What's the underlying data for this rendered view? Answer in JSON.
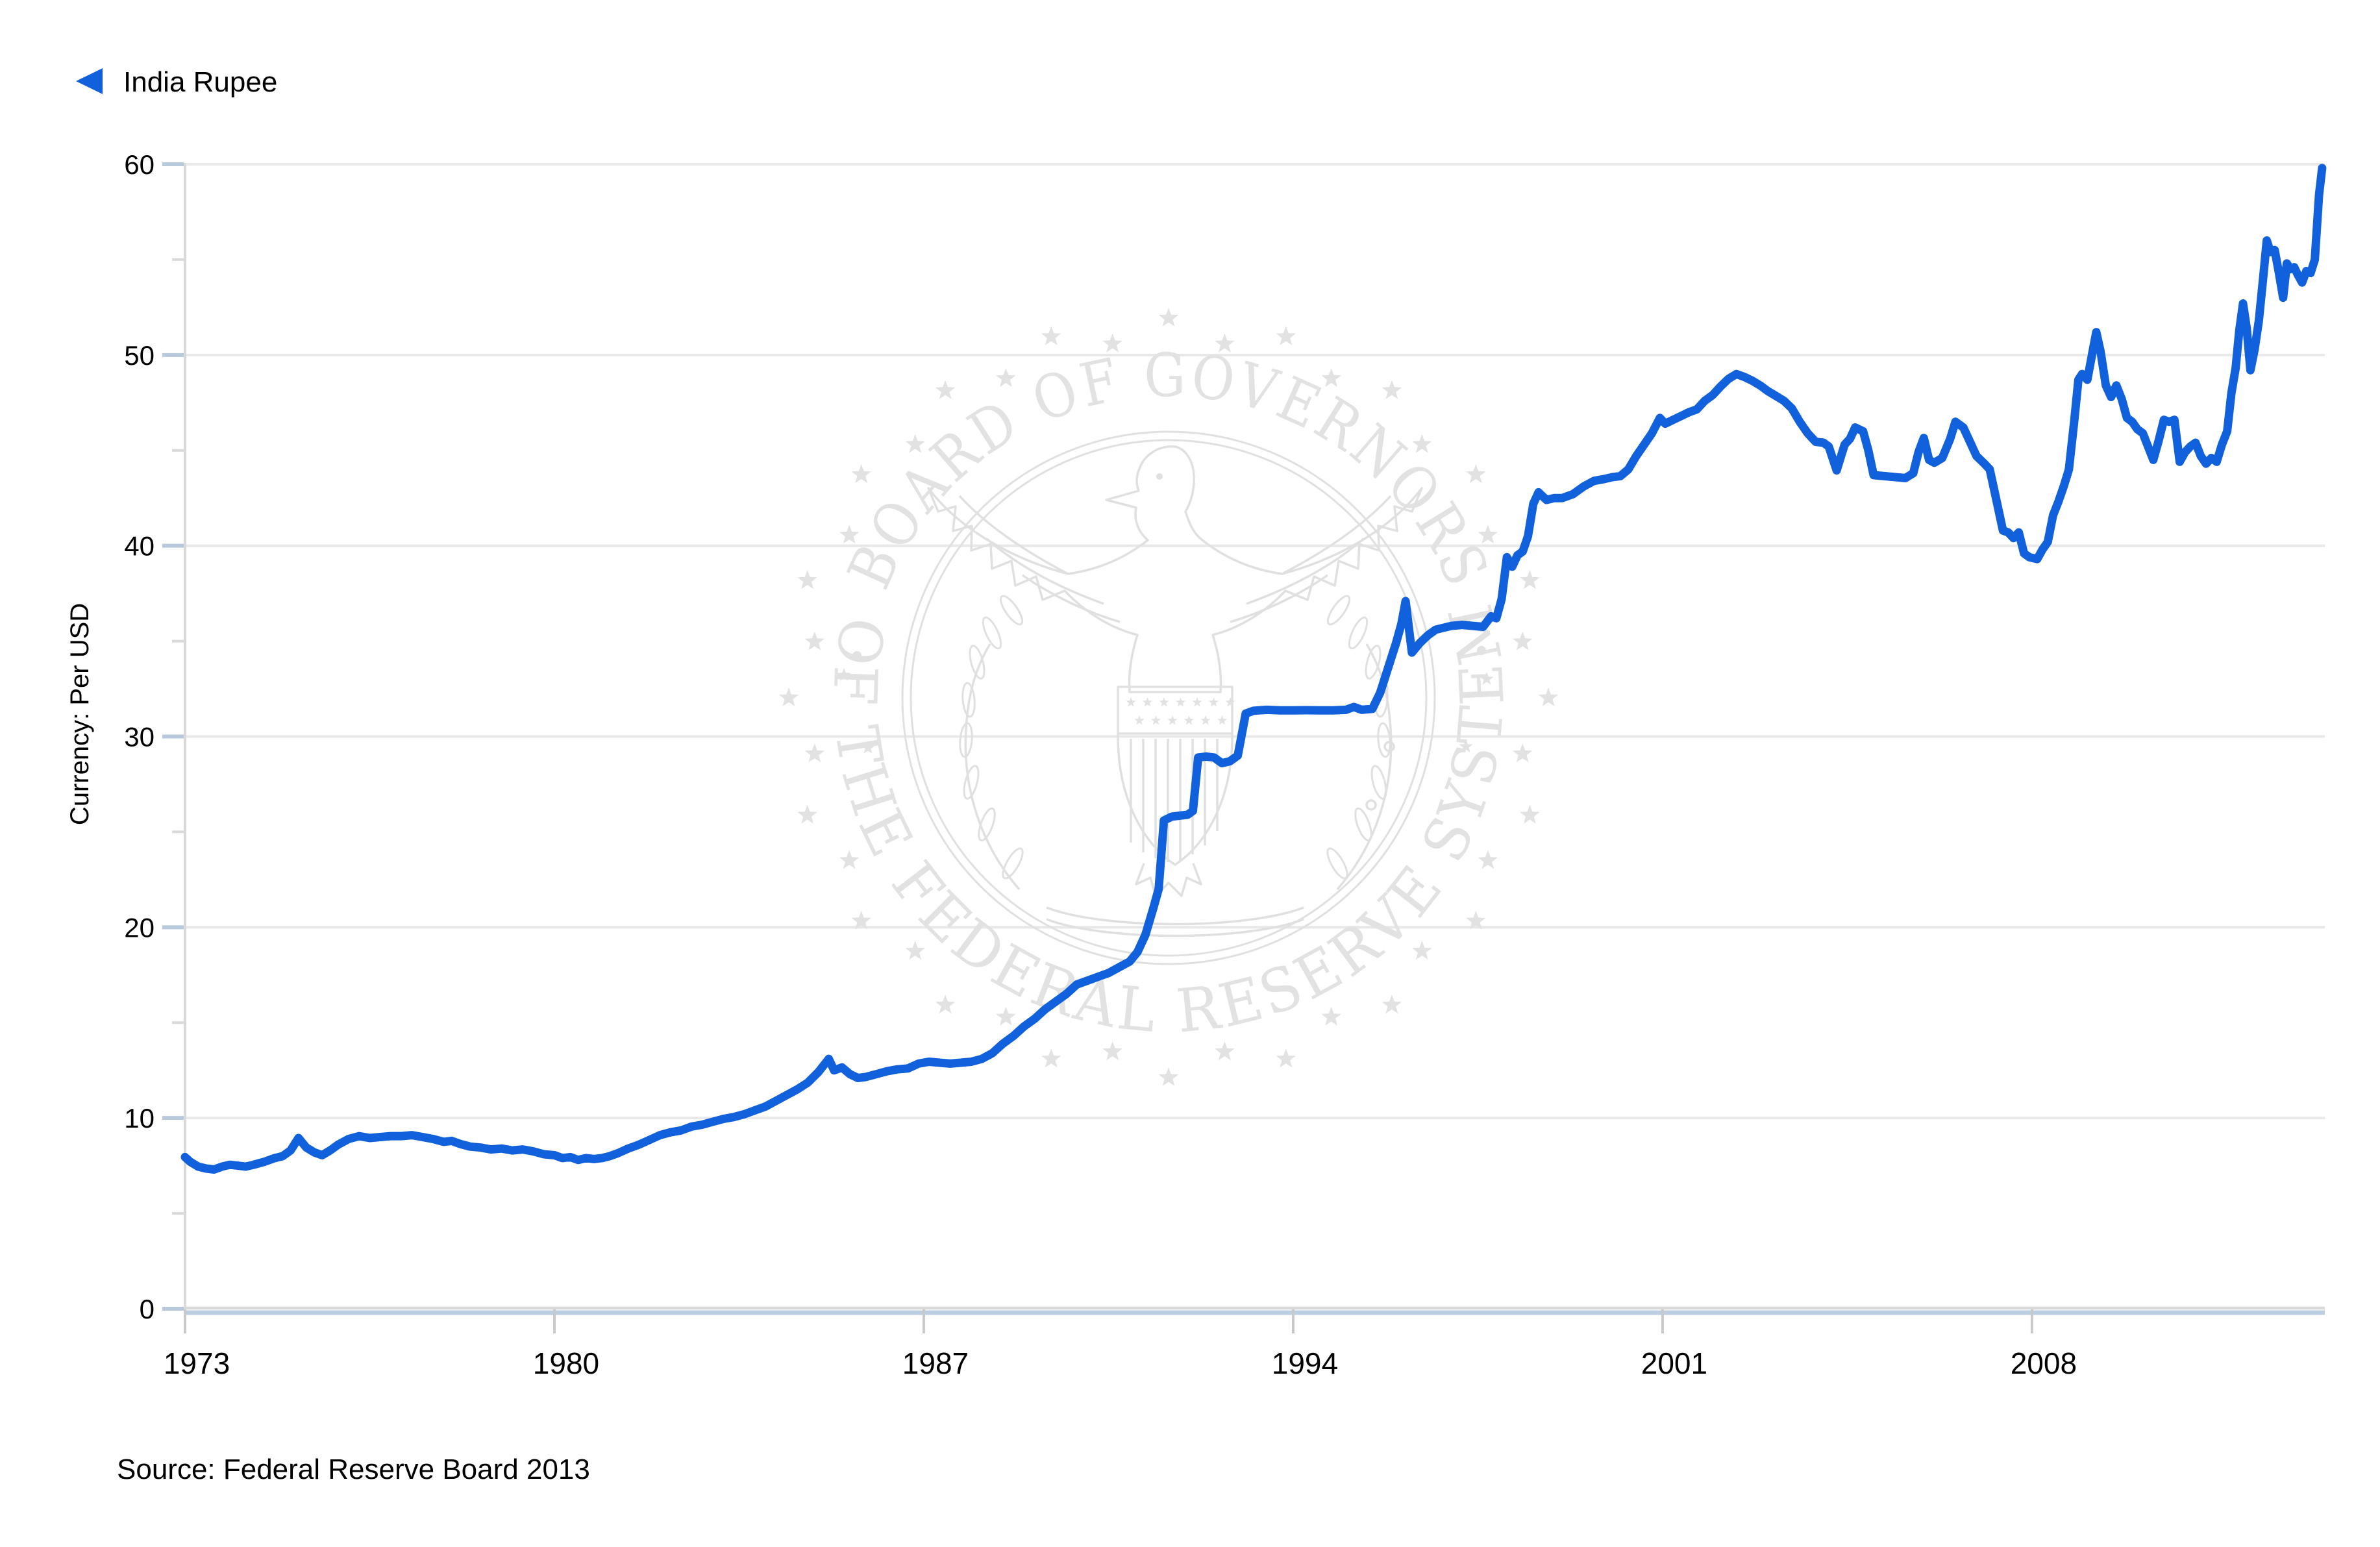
{
  "legend": {
    "label": "India Rupee"
  },
  "source": {
    "text": "Source: Federal Reserve Board 2013"
  },
  "watermark": {
    "top_text": "BOARD OF GOVERNORS",
    "bottom_text": "OF THE FEDERAL RESERVE SYSTEM"
  },
  "colors": {
    "line_blue": "#1161dc",
    "legend_triangle_blue": "#1161dc",
    "major_tick_blue": "#b7c9db",
    "baseline_blue": "#bccfe2",
    "gridline_gray": "#e8e8e8",
    "axis_gray": "#d9d9d9",
    "x_tick_gray": "#c9c9c9",
    "text_black": "#000000",
    "watermark_gray": "#e2e2e2",
    "watermark_stroke": "#e0e0e0"
  },
  "chart_data": {
    "type": "line",
    "title": "",
    "xlabel": "",
    "ylabel": "Currency: Per USD",
    "xlim": [
      1973,
      2013.55
    ],
    "ylim": [
      0,
      60
    ],
    "xticks": [
      1973,
      1980,
      1987,
      1994,
      2001,
      2008
    ],
    "yticks": [
      0,
      10,
      20,
      30,
      40,
      50,
      60
    ],
    "y_minor_ticks": [
      5,
      15,
      25,
      35,
      45,
      55
    ],
    "grid": "horizontal",
    "legend_position": "top-left",
    "series": [
      {
        "name": "India Rupee",
        "points": [
          [
            1973.0,
            7.95
          ],
          [
            1973.1,
            7.7
          ],
          [
            1973.25,
            7.45
          ],
          [
            1973.4,
            7.35
          ],
          [
            1973.55,
            7.3
          ],
          [
            1973.7,
            7.45
          ],
          [
            1973.85,
            7.55
          ],
          [
            1974.0,
            7.5
          ],
          [
            1974.15,
            7.45
          ],
          [
            1974.3,
            7.55
          ],
          [
            1974.5,
            7.7
          ],
          [
            1974.7,
            7.9
          ],
          [
            1974.85,
            8.0
          ],
          [
            1975.0,
            8.3
          ],
          [
            1975.15,
            8.95
          ],
          [
            1975.3,
            8.45
          ],
          [
            1975.45,
            8.2
          ],
          [
            1975.6,
            8.05
          ],
          [
            1975.75,
            8.3
          ],
          [
            1975.9,
            8.6
          ],
          [
            1976.1,
            8.9
          ],
          [
            1976.3,
            9.05
          ],
          [
            1976.5,
            8.95
          ],
          [
            1976.7,
            9.0
          ],
          [
            1976.9,
            9.05
          ],
          [
            1977.1,
            9.05
          ],
          [
            1977.3,
            9.1
          ],
          [
            1977.5,
            9.0
          ],
          [
            1977.7,
            8.9
          ],
          [
            1977.9,
            8.75
          ],
          [
            1978.05,
            8.8
          ],
          [
            1978.2,
            8.65
          ],
          [
            1978.4,
            8.5
          ],
          [
            1978.6,
            8.45
          ],
          [
            1978.8,
            8.35
          ],
          [
            1979.0,
            8.4
          ],
          [
            1979.2,
            8.3
          ],
          [
            1979.4,
            8.35
          ],
          [
            1979.6,
            8.25
          ],
          [
            1979.8,
            8.1
          ],
          [
            1980.0,
            8.05
          ],
          [
            1980.15,
            7.9
          ],
          [
            1980.3,
            7.95
          ],
          [
            1980.45,
            7.8
          ],
          [
            1980.6,
            7.9
          ],
          [
            1980.75,
            7.85
          ],
          [
            1980.9,
            7.9
          ],
          [
            1981.05,
            8.0
          ],
          [
            1981.2,
            8.15
          ],
          [
            1981.4,
            8.4
          ],
          [
            1981.6,
            8.6
          ],
          [
            1981.8,
            8.85
          ],
          [
            1982.0,
            9.1
          ],
          [
            1982.2,
            9.25
          ],
          [
            1982.4,
            9.35
          ],
          [
            1982.6,
            9.55
          ],
          [
            1982.8,
            9.65
          ],
          [
            1983.0,
            9.8
          ],
          [
            1983.2,
            9.95
          ],
          [
            1983.4,
            10.05
          ],
          [
            1983.6,
            10.2
          ],
          [
            1983.8,
            10.4
          ],
          [
            1984.0,
            10.6
          ],
          [
            1984.2,
            10.9
          ],
          [
            1984.4,
            11.2
          ],
          [
            1984.6,
            11.5
          ],
          [
            1984.8,
            11.85
          ],
          [
            1985.0,
            12.4
          ],
          [
            1985.2,
            13.1
          ],
          [
            1985.3,
            12.5
          ],
          [
            1985.45,
            12.65
          ],
          [
            1985.6,
            12.3
          ],
          [
            1985.75,
            12.1
          ],
          [
            1985.9,
            12.15
          ],
          [
            1986.1,
            12.3
          ],
          [
            1986.3,
            12.45
          ],
          [
            1986.5,
            12.55
          ],
          [
            1986.7,
            12.6
          ],
          [
            1986.9,
            12.85
          ],
          [
            1987.1,
            12.95
          ],
          [
            1987.3,
            12.9
          ],
          [
            1987.5,
            12.85
          ],
          [
            1987.7,
            12.9
          ],
          [
            1987.9,
            12.95
          ],
          [
            1988.1,
            13.1
          ],
          [
            1988.3,
            13.4
          ],
          [
            1988.5,
            13.9
          ],
          [
            1988.7,
            14.3
          ],
          [
            1988.9,
            14.8
          ],
          [
            1989.1,
            15.2
          ],
          [
            1989.3,
            15.7
          ],
          [
            1989.5,
            16.1
          ],
          [
            1989.7,
            16.5
          ],
          [
            1989.9,
            17.0
          ],
          [
            1990.1,
            17.2
          ],
          [
            1990.3,
            17.4
          ],
          [
            1990.5,
            17.6
          ],
          [
            1990.7,
            17.9
          ],
          [
            1990.9,
            18.2
          ],
          [
            1991.05,
            18.7
          ],
          [
            1991.2,
            19.6
          ],
          [
            1991.35,
            21.0
          ],
          [
            1991.45,
            22.0
          ],
          [
            1991.55,
            25.6
          ],
          [
            1991.7,
            25.8
          ],
          [
            1991.85,
            25.85
          ],
          [
            1992.0,
            25.9
          ],
          [
            1992.1,
            26.1
          ],
          [
            1992.2,
            28.9
          ],
          [
            1992.35,
            28.95
          ],
          [
            1992.5,
            28.9
          ],
          [
            1992.65,
            28.6
          ],
          [
            1992.8,
            28.7
          ],
          [
            1992.95,
            29.0
          ],
          [
            1993.1,
            31.2
          ],
          [
            1993.25,
            31.35
          ],
          [
            1993.5,
            31.4
          ],
          [
            1993.75,
            31.37
          ],
          [
            1994.0,
            31.37
          ],
          [
            1994.25,
            31.38
          ],
          [
            1994.5,
            31.37
          ],
          [
            1994.75,
            31.37
          ],
          [
            1995.0,
            31.4
          ],
          [
            1995.15,
            31.55
          ],
          [
            1995.3,
            31.4
          ],
          [
            1995.5,
            31.45
          ],
          [
            1995.65,
            32.3
          ],
          [
            1995.8,
            33.6
          ],
          [
            1995.95,
            34.9
          ],
          [
            1996.05,
            35.9
          ],
          [
            1996.13,
            37.1
          ],
          [
            1996.25,
            34.4
          ],
          [
            1996.4,
            34.9
          ],
          [
            1996.55,
            35.3
          ],
          [
            1996.7,
            35.6
          ],
          [
            1996.85,
            35.7
          ],
          [
            1997.0,
            35.8
          ],
          [
            1997.2,
            35.85
          ],
          [
            1997.4,
            35.8
          ],
          [
            1997.6,
            35.75
          ],
          [
            1997.75,
            36.3
          ],
          [
            1997.85,
            36.2
          ],
          [
            1997.95,
            37.2
          ],
          [
            1998.05,
            39.4
          ],
          [
            1998.15,
            38.9
          ],
          [
            1998.25,
            39.5
          ],
          [
            1998.35,
            39.7
          ],
          [
            1998.45,
            40.5
          ],
          [
            1998.55,
            42.2
          ],
          [
            1998.65,
            42.8
          ],
          [
            1998.8,
            42.4
          ],
          [
            1998.95,
            42.5
          ],
          [
            1999.1,
            42.5
          ],
          [
            1999.3,
            42.7
          ],
          [
            1999.5,
            43.1
          ],
          [
            1999.7,
            43.4
          ],
          [
            1999.9,
            43.5
          ],
          [
            2000.05,
            43.6
          ],
          [
            2000.2,
            43.65
          ],
          [
            2000.35,
            44.0
          ],
          [
            2000.5,
            44.7
          ],
          [
            2000.65,
            45.3
          ],
          [
            2000.8,
            45.9
          ],
          [
            2000.95,
            46.7
          ],
          [
            2001.05,
            46.4
          ],
          [
            2001.2,
            46.6
          ],
          [
            2001.35,
            46.8
          ],
          [
            2001.5,
            47.0
          ],
          [
            2001.65,
            47.15
          ],
          [
            2001.8,
            47.6
          ],
          [
            2001.95,
            47.9
          ],
          [
            2002.1,
            48.35
          ],
          [
            2002.25,
            48.75
          ],
          [
            2002.4,
            49.0
          ],
          [
            2002.55,
            48.85
          ],
          [
            2002.7,
            48.65
          ],
          [
            2002.85,
            48.4
          ],
          [
            2003.0,
            48.1
          ],
          [
            2003.15,
            47.85
          ],
          [
            2003.3,
            47.6
          ],
          [
            2003.45,
            47.2
          ],
          [
            2003.6,
            46.5
          ],
          [
            2003.75,
            45.9
          ],
          [
            2003.9,
            45.45
          ],
          [
            2004.05,
            45.4
          ],
          [
            2004.15,
            45.2
          ],
          [
            2004.3,
            43.95
          ],
          [
            2004.45,
            45.3
          ],
          [
            2004.55,
            45.6
          ],
          [
            2004.65,
            46.2
          ],
          [
            2004.8,
            46.0
          ],
          [
            2004.9,
            45.0
          ],
          [
            2005.0,
            43.7
          ],
          [
            2005.2,
            43.65
          ],
          [
            2005.4,
            43.6
          ],
          [
            2005.6,
            43.55
          ],
          [
            2005.75,
            43.8
          ],
          [
            2005.85,
            44.9
          ],
          [
            2005.95,
            45.65
          ],
          [
            2006.05,
            44.5
          ],
          [
            2006.15,
            44.35
          ],
          [
            2006.3,
            44.6
          ],
          [
            2006.45,
            45.6
          ],
          [
            2006.55,
            46.5
          ],
          [
            2006.7,
            46.2
          ],
          [
            2006.85,
            45.3
          ],
          [
            2006.95,
            44.7
          ],
          [
            2007.1,
            44.3
          ],
          [
            2007.2,
            44.0
          ],
          [
            2007.35,
            42.1
          ],
          [
            2007.45,
            40.8
          ],
          [
            2007.55,
            40.7
          ],
          [
            2007.65,
            40.4
          ],
          [
            2007.75,
            40.7
          ],
          [
            2007.85,
            39.6
          ],
          [
            2007.95,
            39.4
          ],
          [
            2008.1,
            39.3
          ],
          [
            2008.2,
            39.8
          ],
          [
            2008.3,
            40.2
          ],
          [
            2008.4,
            41.6
          ],
          [
            2008.5,
            42.3
          ],
          [
            2008.6,
            43.1
          ],
          [
            2008.7,
            44.0
          ],
          [
            2008.8,
            46.5
          ],
          [
            2008.88,
            48.7
          ],
          [
            2008.95,
            49.0
          ],
          [
            2009.05,
            48.7
          ],
          [
            2009.15,
            50.2
          ],
          [
            2009.22,
            51.2
          ],
          [
            2009.3,
            50.2
          ],
          [
            2009.4,
            48.4
          ],
          [
            2009.5,
            47.8
          ],
          [
            2009.6,
            48.4
          ],
          [
            2009.7,
            47.7
          ],
          [
            2009.8,
            46.7
          ],
          [
            2009.9,
            46.5
          ],
          [
            2010.0,
            46.1
          ],
          [
            2010.1,
            45.9
          ],
          [
            2010.2,
            45.2
          ],
          [
            2010.3,
            44.5
          ],
          [
            2010.4,
            45.5
          ],
          [
            2010.5,
            46.6
          ],
          [
            2010.6,
            46.5
          ],
          [
            2010.7,
            46.6
          ],
          [
            2010.8,
            44.4
          ],
          [
            2010.9,
            44.9
          ],
          [
            2011.0,
            45.2
          ],
          [
            2011.1,
            45.4
          ],
          [
            2011.2,
            44.7
          ],
          [
            2011.3,
            44.3
          ],
          [
            2011.4,
            44.6
          ],
          [
            2011.5,
            44.4
          ],
          [
            2011.6,
            45.3
          ],
          [
            2011.7,
            46.0
          ],
          [
            2011.78,
            48.0
          ],
          [
            2011.86,
            49.3
          ],
          [
            2011.93,
            51.3
          ],
          [
            2012.0,
            52.7
          ],
          [
            2012.07,
            51.4
          ],
          [
            2012.14,
            49.2
          ],
          [
            2012.22,
            50.3
          ],
          [
            2012.3,
            51.8
          ],
          [
            2012.38,
            54.0
          ],
          [
            2012.45,
            56.0
          ],
          [
            2012.52,
            55.4
          ],
          [
            2012.6,
            55.5
          ],
          [
            2012.68,
            54.3
          ],
          [
            2012.76,
            53.0
          ],
          [
            2012.83,
            54.8
          ],
          [
            2012.9,
            54.5
          ],
          [
            2012.97,
            54.6
          ],
          [
            2013.04,
            54.2
          ],
          [
            2013.12,
            53.8
          ],
          [
            2013.2,
            54.4
          ],
          [
            2013.28,
            54.3
          ],
          [
            2013.36,
            55.0
          ],
          [
            2013.44,
            58.4
          ],
          [
            2013.5,
            59.8
          ]
        ]
      }
    ]
  }
}
